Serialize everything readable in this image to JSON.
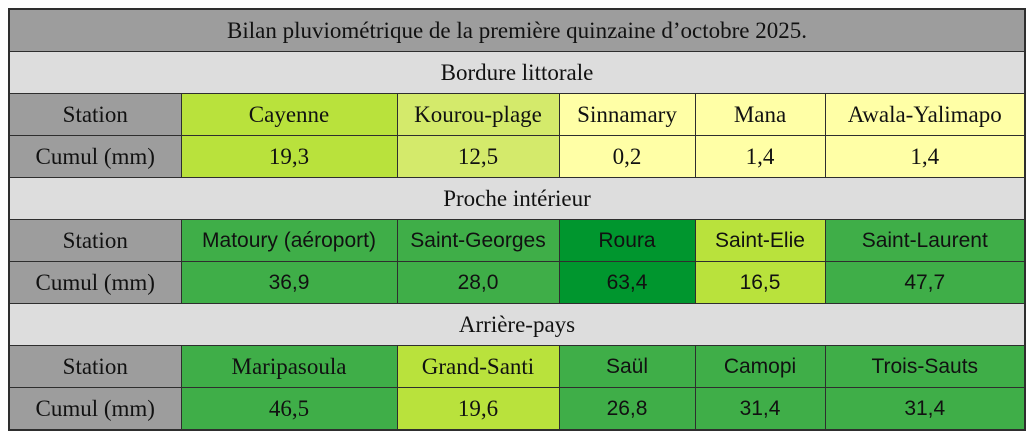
{
  "title": "Bilan pluviométrique de la première quinzaine d’octobre 2025.",
  "row_labels": {
    "station": "Station",
    "cumul": "Cumul (mm)"
  },
  "colors": {
    "label_gray": "#9d9d9d",
    "section_gray": "#dddddd",
    "pale_yellow": "#ffffa6",
    "light_lime": "#d4ea6b",
    "lime": "#b9e23c",
    "green": "#3fae48",
    "dark_green": "#00962e"
  },
  "sections": [
    {
      "name": "Bordure littorale",
      "stations": [
        {
          "name": "Cayenne",
          "cumul": "19,3",
          "color": "#b9e23c"
        },
        {
          "name": "Kourou-plage",
          "cumul": "12,5",
          "color": "#d4ea6b"
        },
        {
          "name": "Sinnamary",
          "cumul": "0,2",
          "color": "#ffffa6"
        },
        {
          "name": "Mana",
          "cumul": "1,4",
          "color": "#ffffa6"
        },
        {
          "name": "Awala-Yalimapo",
          "cumul": "1,4",
          "color": "#ffffa6"
        }
      ]
    },
    {
      "name": "Proche intérieur",
      "stations": [
        {
          "name": "Matoury (aéroport)",
          "cumul": "36,9",
          "color": "#3fae48"
        },
        {
          "name": "Saint-Georges",
          "cumul": "28,0",
          "color": "#3fae48"
        },
        {
          "name": "Roura",
          "cumul": "63,4",
          "color": "#00962e"
        },
        {
          "name": "Saint-Elie",
          "cumul": "16,5",
          "color": "#b9e23c"
        },
        {
          "name": "Saint-Laurent",
          "cumul": "47,7",
          "color": "#3fae48"
        }
      ]
    },
    {
      "name": "Arrière-pays",
      "stations": [
        {
          "name": "Maripasoula",
          "cumul": "46,5",
          "color": "#3fae48"
        },
        {
          "name": "Grand-Santi",
          "cumul": "19,6",
          "color": "#b9e23c"
        },
        {
          "name": "Saül",
          "cumul": "26,8",
          "color": "#3fae48"
        },
        {
          "name": "Camopi",
          "cumul": "31,4",
          "color": "#3fae48"
        },
        {
          "name": "Trois-Sauts",
          "cumul": "31,4",
          "color": "#3fae48"
        }
      ]
    }
  ]
}
